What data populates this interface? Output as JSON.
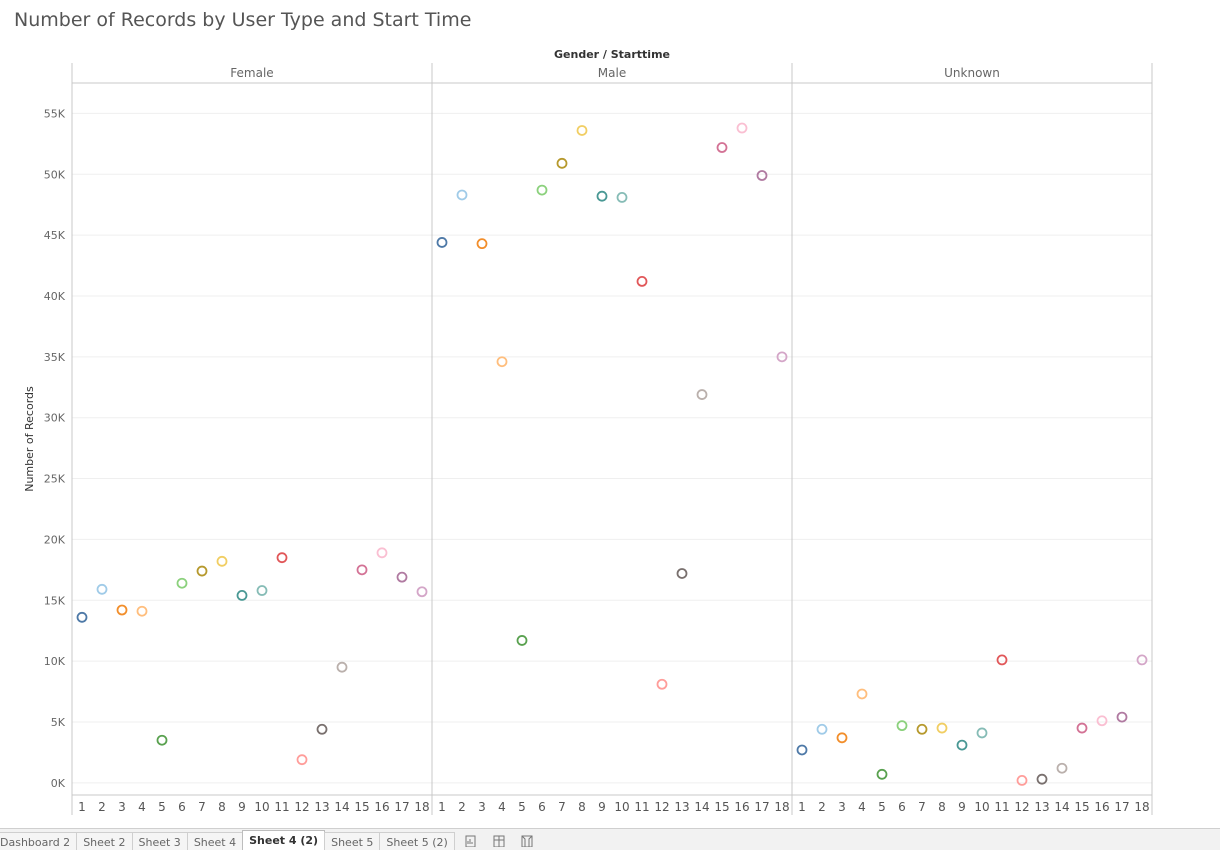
{
  "title": "Number of Records by User Type and Start Time",
  "tabs": [
    "Dashboard 2",
    "Sheet 2",
    "Sheet 3",
    "Sheet 4",
    "Sheet 4 (2)",
    "Sheet 5",
    "Sheet 5 (2)"
  ],
  "active_tab": "Sheet 4 (2)",
  "tab_icons": [
    "new-worksheet-icon",
    "new-dashboard-icon",
    "new-story-icon"
  ],
  "chart_data": {
    "type": "scatter",
    "title": "Number of Records by User Type and Start Time",
    "column_header": "Gender / Starttime",
    "ylabel": "Number of Records",
    "ylim": [
      -1000,
      57500
    ],
    "y_ticks": [
      0,
      5000,
      10000,
      15000,
      20000,
      25000,
      30000,
      35000,
      40000,
      45000,
      50000,
      55000
    ],
    "y_tick_labels": [
      "0K",
      "5K",
      "10K",
      "15K",
      "20K",
      "25K",
      "30K",
      "35K",
      "40K",
      "45K",
      "50K",
      "55K"
    ],
    "categories": [
      "1",
      "2",
      "3",
      "4",
      "5",
      "6",
      "7",
      "8",
      "9",
      "10",
      "11",
      "12",
      "13",
      "14",
      "15",
      "16",
      "17",
      "18"
    ],
    "grid": true,
    "marker": "open-circle",
    "colors": [
      "#4e79a7",
      "#a0cbe8",
      "#f28e2b",
      "#ffbe7d",
      "#59a14f",
      "#8cd17d",
      "#b6992d",
      "#f1ce63",
      "#499894",
      "#86bcb6",
      "#e15759",
      "#ff9d9a",
      "#79706e",
      "#bab0ac",
      "#d37295",
      "#fabfd2",
      "#b07aa1",
      "#d4a6c8"
    ],
    "panels": [
      {
        "name": "Female",
        "values": [
          13600,
          15900,
          14200,
          14100,
          3500,
          16400,
          17400,
          18200,
          15400,
          15800,
          18500,
          1900,
          4400,
          9500,
          17500,
          18900,
          16900,
          15700
        ]
      },
      {
        "name": "Male",
        "values": [
          44400,
          48300,
          44300,
          34600,
          11700,
          48700,
          50900,
          53600,
          48200,
          48100,
          41200,
          8100,
          17200,
          31900,
          52200,
          53800,
          49900,
          35000
        ]
      },
      {
        "name": "Unknown",
        "values": [
          2700,
          4400,
          3700,
          7300,
          700,
          4700,
          4400,
          4500,
          3100,
          4100,
          10100,
          200,
          300,
          1200,
          4500,
          5100,
          5400,
          10100
        ]
      }
    ]
  }
}
